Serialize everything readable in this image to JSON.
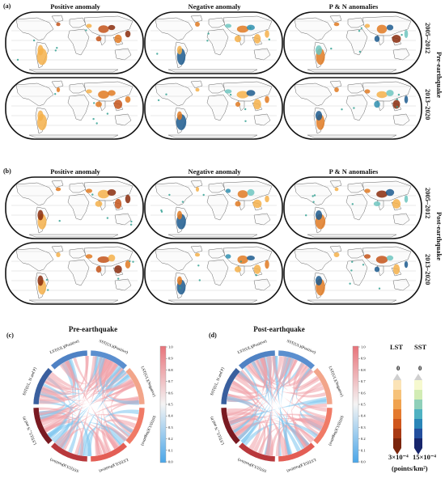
{
  "panel_a": {
    "label": "(a)",
    "columns": [
      "Positive anomaly",
      "Negative anomaly",
      "P & N anomalies"
    ],
    "rows": [
      "2005–2012",
      "2013–2020"
    ],
    "group_label": "Pre-earthquake"
  },
  "panel_b": {
    "label": "(b)",
    "columns": [
      "Positive anomaly",
      "Negative anomaly",
      "P & N anomalies"
    ],
    "rows": [
      "2005–2012",
      "2013–2020"
    ],
    "group_label": "Post-earthquake"
  },
  "panel_c": {
    "label": "(c)",
    "title": "Pre-earthquake",
    "segments": [
      "SST(UL)(Positive)",
      "LST(UL)(Negative)",
      "SST(UL)(Negative)",
      "LST(UL)(Positive)",
      "SST(UL)(Positive)",
      "LST(UL, N and P)",
      "SST(UL, N and P)",
      "LST(UL)(Positive)"
    ]
  },
  "panel_d": {
    "label": "(d)",
    "title": "Post-earthquake",
    "segments": [
      "SST(UL)(Positive)",
      "LST(UL)(Negative)",
      "SST(UL)(Negative)",
      "LST(UL)(Positive)",
      "SST(UL)(Positive)",
      "LST(UL, N and P)",
      "SST(UL, N and P)",
      "LST(UL)(Positive)"
    ]
  },
  "colorbar": {
    "ticks": [
      "1.0",
      "0.9",
      "0.8",
      "0.7",
      "0.6",
      "0.5",
      "0.4",
      "0.3",
      "0.2",
      "0.1",
      "0.0"
    ],
    "top_color": "#e8737a",
    "mid_color": "#f4f4f4",
    "bottom_color": "#4aa6e8"
  },
  "legend": {
    "lst_label": "LST",
    "sst_label": "SST",
    "lst_top": "0",
    "sst_top": "0",
    "lst_bottom": "3×10⁻⁴",
    "sst_bottom": "15×10⁻⁴",
    "unit": "(points/km²)",
    "lst_colors": [
      "#fbe3b6",
      "#f6c27a",
      "#f0a24e",
      "#e47a2e",
      "#cf561c",
      "#a83a14",
      "#7a250c"
    ],
    "sst_colors": [
      "#f6f9cf",
      "#d2ecb4",
      "#8fd0b9",
      "#4fb2c2",
      "#2a86b8",
      "#234f9e",
      "#17256b"
    ]
  }
}
